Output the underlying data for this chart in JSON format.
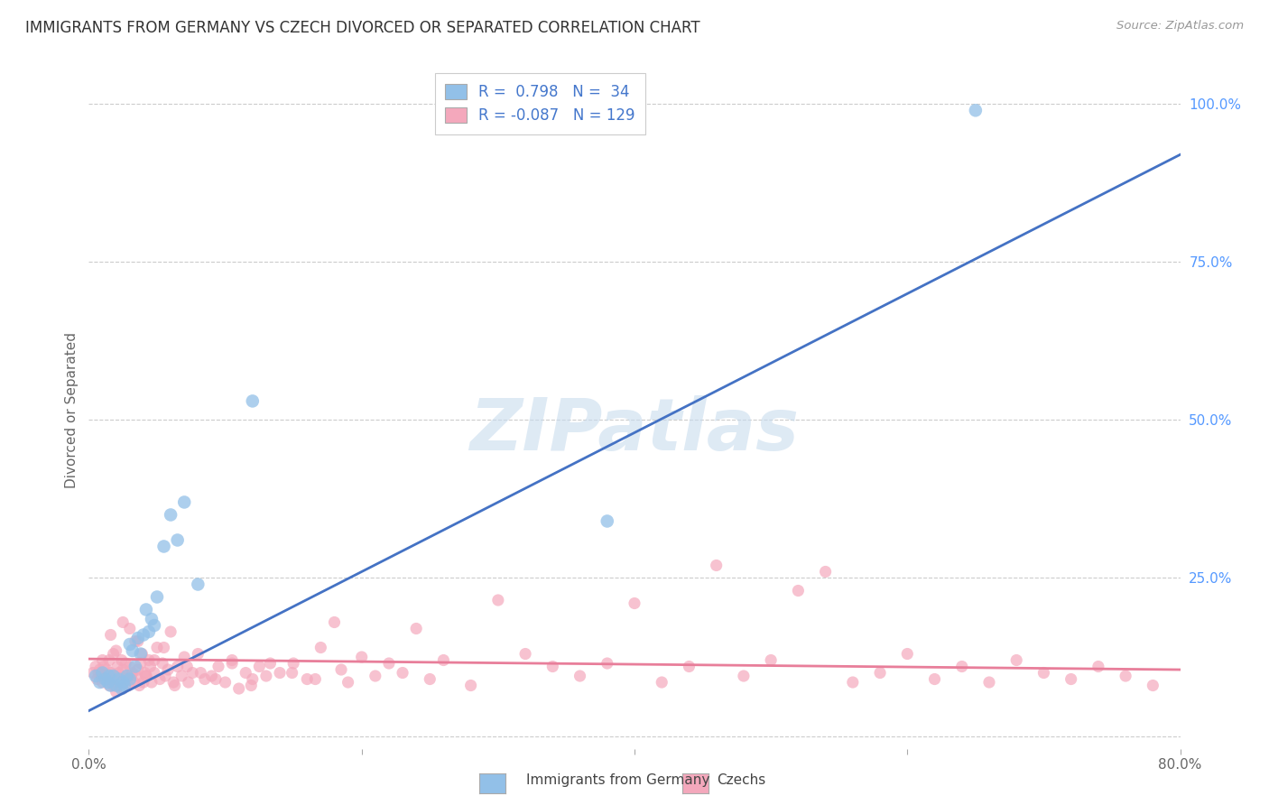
{
  "title": "IMMIGRANTS FROM GERMANY VS CZECH DIVORCED OR SEPARATED CORRELATION CHART",
  "source": "Source: ZipAtlas.com",
  "ylabel": "Divorced or Separated",
  "x_min": 0.0,
  "x_max": 0.8,
  "y_min": -0.02,
  "y_max": 1.05,
  "grid_color": "#cccccc",
  "background_color": "#ffffff",
  "blue_color": "#92C0E8",
  "pink_color": "#F4A8BC",
  "blue_line_color": "#4472C4",
  "pink_line_color": "#E87E9A",
  "watermark": "ZIPatlas",
  "legend_blue_r": "0.798",
  "legend_blue_n": "34",
  "legend_pink_r": "-0.087",
  "legend_pink_n": "129",
  "blue_line_x0": 0.0,
  "blue_line_y0": 0.04,
  "blue_line_x1": 0.8,
  "blue_line_y1": 0.92,
  "pink_line_x0": 0.0,
  "pink_line_y0": 0.122,
  "pink_line_x1": 0.8,
  "pink_line_y1": 0.105,
  "blue_x": [
    0.005,
    0.008,
    0.01,
    0.012,
    0.014,
    0.015,
    0.016,
    0.018,
    0.02,
    0.022,
    0.024,
    0.025,
    0.026,
    0.028,
    0.03,
    0.03,
    0.032,
    0.034,
    0.036,
    0.038,
    0.04,
    0.042,
    0.044,
    0.046,
    0.048,
    0.05,
    0.055,
    0.06,
    0.065,
    0.07,
    0.08,
    0.12,
    0.38,
    0.65
  ],
  "blue_y": [
    0.095,
    0.085,
    0.1,
    0.09,
    0.085,
    0.095,
    0.08,
    0.095,
    0.08,
    0.09,
    0.075,
    0.085,
    0.08,
    0.095,
    0.09,
    0.145,
    0.135,
    0.11,
    0.155,
    0.13,
    0.16,
    0.2,
    0.165,
    0.185,
    0.175,
    0.22,
    0.3,
    0.35,
    0.31,
    0.37,
    0.24,
    0.53,
    0.34,
    0.99
  ],
  "pink_x": [
    0.003,
    0.005,
    0.006,
    0.007,
    0.008,
    0.009,
    0.01,
    0.01,
    0.011,
    0.012,
    0.013,
    0.014,
    0.015,
    0.015,
    0.016,
    0.017,
    0.018,
    0.018,
    0.019,
    0.02,
    0.021,
    0.022,
    0.023,
    0.024,
    0.025,
    0.025,
    0.026,
    0.027,
    0.028,
    0.029,
    0.03,
    0.031,
    0.032,
    0.033,
    0.034,
    0.035,
    0.036,
    0.037,
    0.038,
    0.039,
    0.04,
    0.041,
    0.042,
    0.044,
    0.045,
    0.046,
    0.048,
    0.05,
    0.052,
    0.054,
    0.056,
    0.058,
    0.06,
    0.062,
    0.065,
    0.068,
    0.07,
    0.073,
    0.076,
    0.08,
    0.085,
    0.09,
    0.095,
    0.1,
    0.105,
    0.11,
    0.115,
    0.12,
    0.125,
    0.13,
    0.14,
    0.15,
    0.16,
    0.17,
    0.18,
    0.19,
    0.2,
    0.21,
    0.22,
    0.23,
    0.24,
    0.25,
    0.26,
    0.28,
    0.3,
    0.32,
    0.34,
    0.36,
    0.38,
    0.4,
    0.42,
    0.44,
    0.46,
    0.48,
    0.5,
    0.52,
    0.54,
    0.56,
    0.58,
    0.6,
    0.62,
    0.64,
    0.66,
    0.68,
    0.7,
    0.72,
    0.74,
    0.76,
    0.78,
    0.008,
    0.012,
    0.016,
    0.02,
    0.025,
    0.03,
    0.036,
    0.042,
    0.048,
    0.055,
    0.063,
    0.072,
    0.082,
    0.093,
    0.105,
    0.119,
    0.133,
    0.149,
    0.166,
    0.185
  ],
  "pink_y": [
    0.1,
    0.11,
    0.09,
    0.1,
    0.105,
    0.095,
    0.12,
    0.085,
    0.11,
    0.095,
    0.105,
    0.09,
    0.12,
    0.08,
    0.1,
    0.09,
    0.13,
    0.08,
    0.095,
    0.07,
    0.11,
    0.1,
    0.085,
    0.12,
    0.105,
    0.075,
    0.095,
    0.115,
    0.09,
    0.08,
    0.11,
    0.095,
    0.1,
    0.085,
    0.15,
    0.095,
    0.105,
    0.08,
    0.115,
    0.13,
    0.085,
    0.1,
    0.095,
    0.12,
    0.11,
    0.085,
    0.1,
    0.14,
    0.09,
    0.115,
    0.095,
    0.105,
    0.165,
    0.085,
    0.11,
    0.095,
    0.125,
    0.085,
    0.1,
    0.13,
    0.09,
    0.095,
    0.11,
    0.085,
    0.115,
    0.075,
    0.1,
    0.09,
    0.11,
    0.095,
    0.1,
    0.115,
    0.09,
    0.14,
    0.18,
    0.085,
    0.125,
    0.095,
    0.115,
    0.1,
    0.17,
    0.09,
    0.12,
    0.08,
    0.215,
    0.13,
    0.11,
    0.095,
    0.115,
    0.21,
    0.085,
    0.11,
    0.27,
    0.095,
    0.12,
    0.23,
    0.26,
    0.085,
    0.1,
    0.13,
    0.09,
    0.11,
    0.085,
    0.12,
    0.1,
    0.09,
    0.11,
    0.095,
    0.08,
    0.1,
    0.09,
    0.16,
    0.135,
    0.18,
    0.17,
    0.15,
    0.095,
    0.12,
    0.14,
    0.08,
    0.11,
    0.1,
    0.09,
    0.12,
    0.08,
    0.115,
    0.1,
    0.09,
    0.105
  ]
}
